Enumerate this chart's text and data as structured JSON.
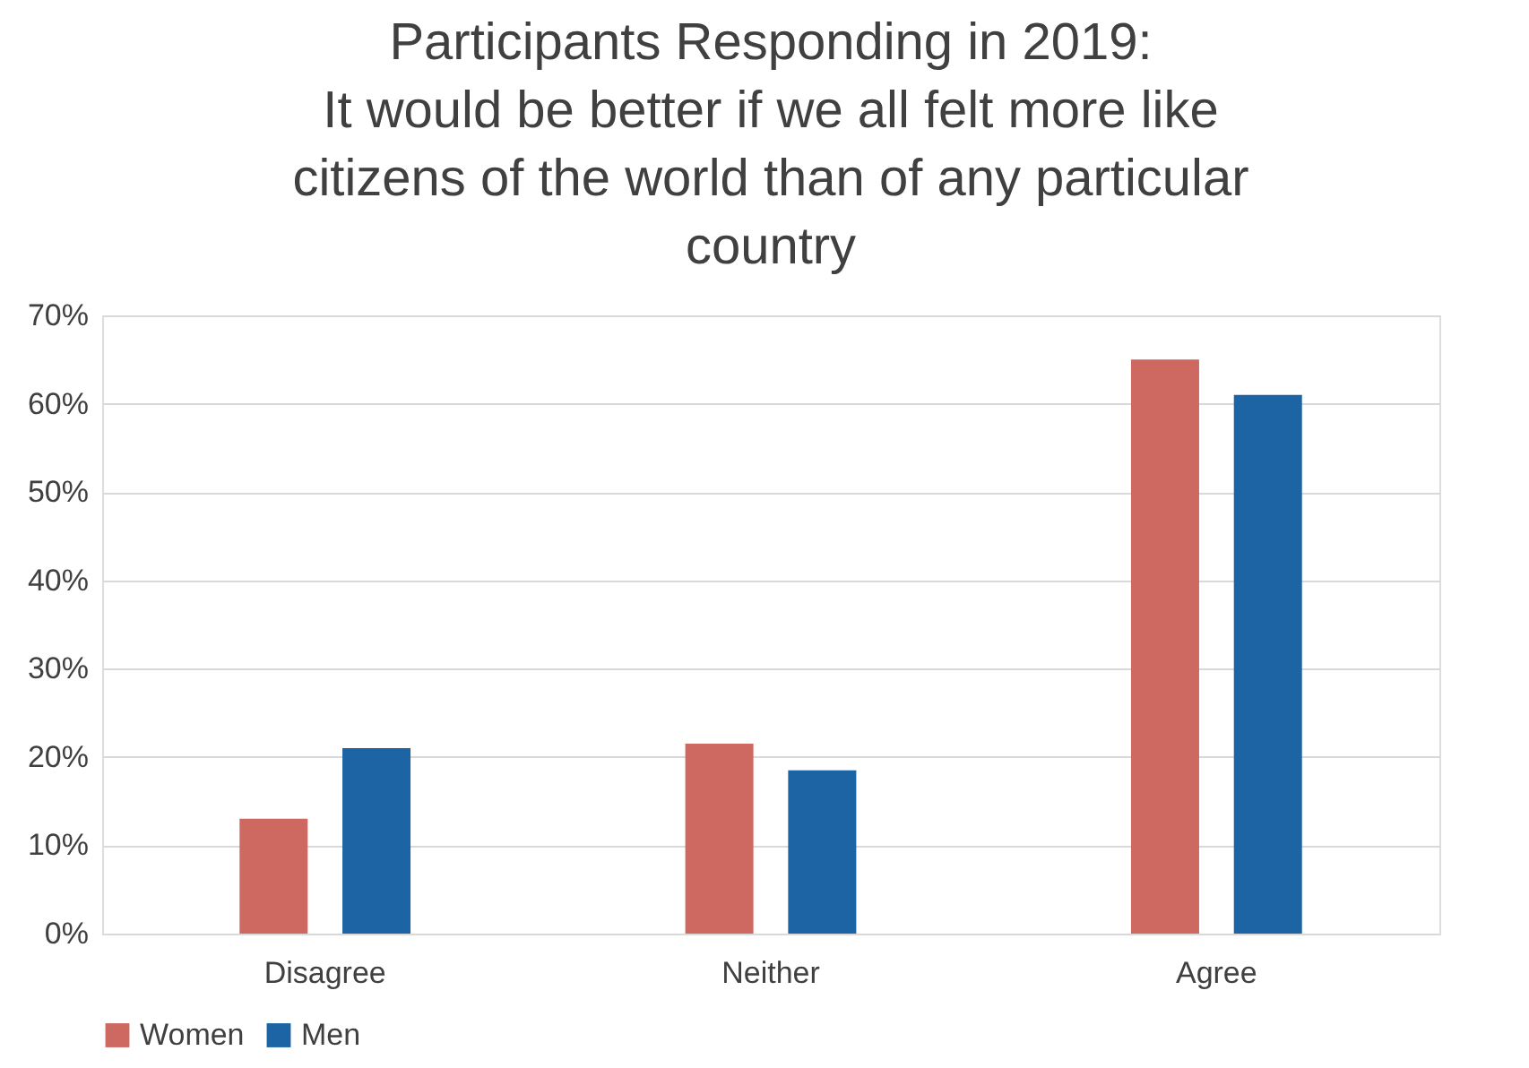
{
  "chart_data": {
    "type": "bar",
    "title": "Participants Responding in 2019:\nIt would be better if we all felt more like\ncitizens of the world than of any particular\ncountry",
    "categories": [
      "Disagree",
      "Neither",
      "Agree"
    ],
    "series": [
      {
        "name": "Women",
        "color": "#cd6961",
        "values": [
          13,
          21.5,
          65
        ]
      },
      {
        "name": "Men",
        "color": "#1c64a4",
        "values": [
          21,
          18.5,
          61
        ]
      }
    ],
    "ylim": [
      0,
      70
    ],
    "yticks": [
      {
        "value": 0,
        "label": "0%"
      },
      {
        "value": 10,
        "label": "10%"
      },
      {
        "value": 20,
        "label": "20%"
      },
      {
        "value": 30,
        "label": "30%"
      },
      {
        "value": 40,
        "label": "40%"
      },
      {
        "value": 50,
        "label": "50%"
      },
      {
        "value": 60,
        "label": "60%"
      },
      {
        "value": 70,
        "label": "70%"
      }
    ],
    "grid": "y",
    "legend": "bottom"
  }
}
